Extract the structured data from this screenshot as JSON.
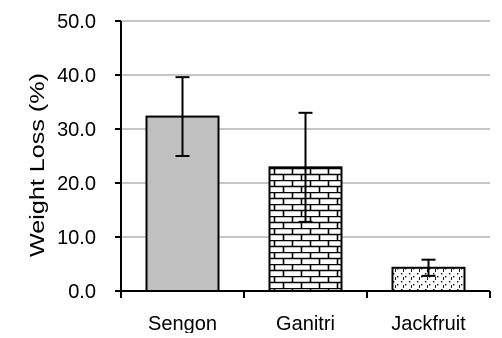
{
  "chart_data": {
    "type": "bar",
    "ylabel": "Weight Loss (%)",
    "categories": [
      "Sengon",
      "Ganitri",
      "Jackfruit"
    ],
    "values": [
      32.3,
      22.9,
      4.3
    ],
    "error_bars": [
      {
        "low": 25.0,
        "high": 39.6
      },
      {
        "low": 12.8,
        "high": 33.0
      },
      {
        "low": 2.8,
        "high": 5.8
      }
    ],
    "bar_fills": [
      "solid-gray",
      "brick-pattern",
      "dotted-pattern"
    ],
    "ylim": [
      0,
      50
    ],
    "yticks": [
      "0.0",
      "10.0",
      "20.0",
      "30.0",
      "40.0",
      "50.0"
    ],
    "ytick_values": [
      0,
      10,
      20,
      30,
      40,
      50
    ],
    "grid": true,
    "colors": {
      "axis": "#000000",
      "grid": "#8c8c8c",
      "sengon_fill": "#c0c0c0",
      "bar_outline": "#000000"
    }
  }
}
